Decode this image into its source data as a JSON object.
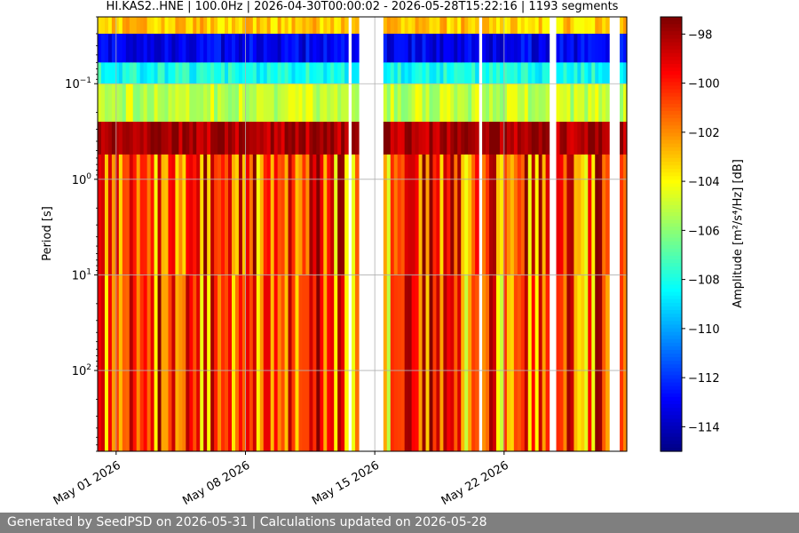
{
  "chart_data": {
    "type": "heatmap",
    "title": "HI.KAS2..HNE | 100.0Hz | 2026-04-30T00:00:02 - 2026-05-28T15:22:16 | 1193 segments",
    "ylabel": "Period [s]",
    "xlabel": "",
    "x_start": "2026-04-30",
    "x_end": "2026-05-28T15:22",
    "x_ticks": [
      "May 01 2026",
      "May 08 2026",
      "May 15 2026",
      "May 22 2026"
    ],
    "y_scale": "log",
    "y_inverted": true,
    "y_ticks": [
      "10^-1",
      "10^0",
      "10^1",
      "10^2"
    ],
    "ylim": [
      0.02,
      700
    ],
    "grid": true,
    "data_gaps": [
      {
        "start": "2026-05-13T12:00",
        "end": "2026-05-13T16:00"
      },
      {
        "start": "2026-05-14T05:00",
        "end": "2026-05-15T10:00"
      },
      {
        "start": "2026-05-20T13:00",
        "end": "2026-05-20T18:00"
      },
      {
        "start": "2026-05-24T11:00",
        "end": "2026-05-24T18:00"
      },
      {
        "start": "2026-05-27T16:00",
        "end": "2026-05-28T04:00"
      }
    ],
    "period_bands": [
      {
        "period_range": [
          0.02,
          0.03
        ],
        "amp_db": -103
      },
      {
        "period_range": [
          0.03,
          0.06
        ],
        "amp_db": -113
      },
      {
        "period_range": [
          0.06,
          0.1
        ],
        "amp_db": -108
      },
      {
        "period_range": [
          0.1,
          0.25
        ],
        "amp_db": -105
      },
      {
        "period_range": [
          0.25,
          0.55
        ],
        "amp_db": -98
      },
      {
        "period_range": [
          0.55,
          10
        ],
        "amp_db": -101
      },
      {
        "period_range": [
          10,
          700
        ],
        "amp_db": -101
      }
    ],
    "colorbar": {
      "label": "Amplitude [m²/s⁴/Hz] [dB]",
      "min": -115,
      "max": -97.3,
      "ticks": [
        -98,
        -100,
        -102,
        -104,
        -106,
        -108,
        -110,
        -112,
        -114
      ],
      "colormap": "jet"
    }
  },
  "footer": {
    "text": "Generated by SeedPSD on 2026-05-31 | Calculations updated on 2026-05-28"
  }
}
